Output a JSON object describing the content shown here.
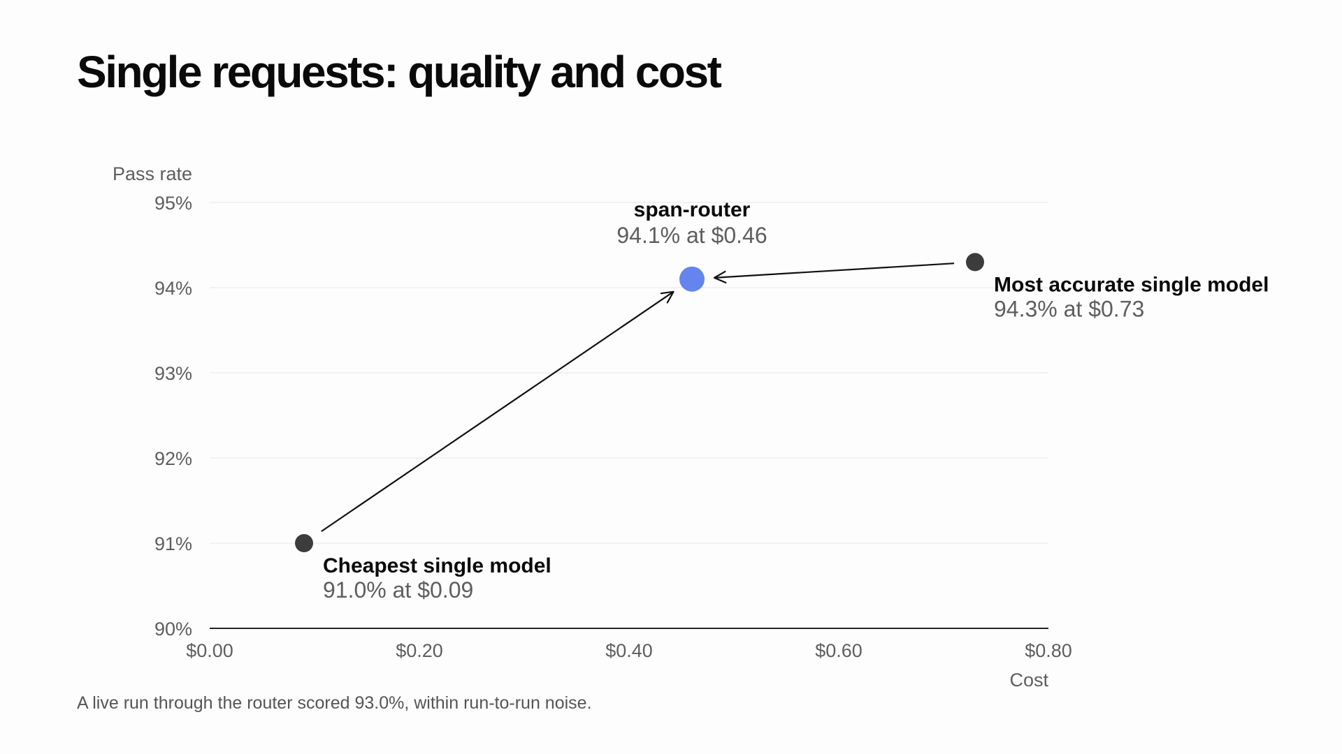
{
  "title": "Single requests: quality and cost",
  "footnote": "A live run through the router scored 93.0%, within run-to-run noise.",
  "colors": {
    "highlight_point": "#6584ee",
    "point": "#3c3c3c",
    "gridline": "#ececec",
    "axis": "#222222",
    "arrow": "#111111"
  },
  "chart_data": {
    "type": "scatter",
    "title": "Single requests: quality and cost",
    "xlabel": "Cost",
    "ylabel": "Pass rate",
    "xlim": [
      0.0,
      0.8
    ],
    "ylim": [
      90,
      95
    ],
    "x_ticks": [
      {
        "value": 0.0,
        "label": "$0.00"
      },
      {
        "value": 0.2,
        "label": "$0.20"
      },
      {
        "value": 0.4,
        "label": "$0.40"
      },
      {
        "value": 0.6,
        "label": "$0.60"
      },
      {
        "value": 0.8,
        "label": "$0.80"
      }
    ],
    "y_ticks": [
      {
        "value": 95,
        "label": "95%"
      },
      {
        "value": 94,
        "label": "94%"
      },
      {
        "value": 93,
        "label": "93%"
      },
      {
        "value": 92,
        "label": "92%"
      },
      {
        "value": 91,
        "label": "91%"
      },
      {
        "value": 90,
        "label": "90%"
      }
    ],
    "grid": "horizontal",
    "points": [
      {
        "id": "cheapest",
        "x": 0.09,
        "y": 91.0,
        "label": "Cheapest single model",
        "value_label": "91.0% at $0.09",
        "highlight": false,
        "label_position": "below-right"
      },
      {
        "id": "router",
        "x": 0.46,
        "y": 94.1,
        "label": "span-router",
        "value_label": "94.1% at $0.46",
        "highlight": true,
        "label_position": "above"
      },
      {
        "id": "most-accurate",
        "x": 0.73,
        "y": 94.3,
        "label": "Most accurate single model",
        "value_label": "94.3% at $0.73",
        "highlight": false,
        "label_position": "below-right"
      }
    ],
    "arrows": [
      {
        "from": "cheapest",
        "to": "router"
      },
      {
        "from": "most-accurate",
        "to": "router"
      }
    ]
  }
}
